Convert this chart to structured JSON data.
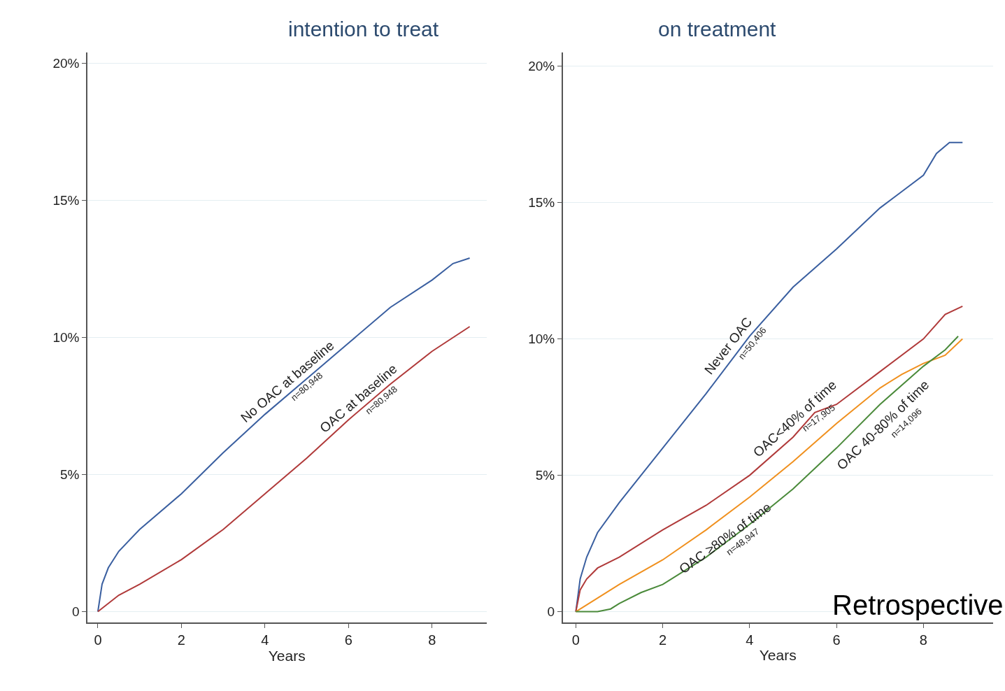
{
  "chart_data": [
    {
      "type": "line",
      "title": "intention to treat",
      "xlabel": "Years",
      "xlim": [
        -0.25,
        9.3
      ],
      "ylim": [
        -0.4,
        20.4
      ],
      "xticks": [
        0,
        2,
        4,
        6,
        8
      ],
      "yticks": [
        {
          "value": 0,
          "label": "0"
        },
        {
          "value": 5,
          "label": "5%"
        },
        {
          "value": 10,
          "label": "10%"
        },
        {
          "value": 15,
          "label": "15%"
        },
        {
          "value": 20,
          "label": "20%"
        }
      ],
      "grid": "y",
      "marker": "none",
      "line_style": "solid",
      "series": [
        {
          "color": "#3a5fa0",
          "x": [
            0,
            0.1,
            0.25,
            0.5,
            1,
            2,
            3,
            4,
            5,
            6,
            7,
            8,
            8.5,
            8.9
          ],
          "values": [
            0,
            1.0,
            1.6,
            2.2,
            3.0,
            4.3,
            5.8,
            7.2,
            8.5,
            9.8,
            11.1,
            12.1,
            12.7,
            12.9
          ]
        },
        {
          "color": "#b03a3a",
          "x": [
            0,
            0.5,
            1,
            2,
            3,
            4,
            5,
            6,
            7,
            8,
            8.9
          ],
          "values": [
            0,
            0.6,
            1.0,
            1.9,
            3.0,
            4.3,
            5.6,
            7.0,
            8.3,
            9.5,
            10.4
          ]
        }
      ],
      "annotations": [
        {
          "text": "No OAC at baseline",
          "x": 4.7,
          "y": 8.1
        },
        {
          "text": "n=80,948",
          "x": 4.9,
          "y": 8.4
        },
        {
          "text": "OAC at baseline",
          "x": 6.4,
          "y": 7.5
        },
        {
          "text": "n=80,948",
          "x": 6.7,
          "y": 7.9
        }
      ]
    },
    {
      "type": "line",
      "title": "on treatment",
      "xlabel": "Years",
      "xlim": [
        -0.3,
        9.6
      ],
      "ylim": [
        -0.4,
        20.5
      ],
      "xticks": [
        0,
        2,
        4,
        6,
        8
      ],
      "yticks": [
        {
          "value": 0,
          "label": "0"
        },
        {
          "value": 5,
          "label": "5%"
        },
        {
          "value": 10,
          "label": "10%"
        },
        {
          "value": 15,
          "label": "15%"
        },
        {
          "value": 20,
          "label": "20%"
        }
      ],
      "grid": "y",
      "marker": "none",
      "line_style": "solid",
      "series": [
        {
          "color": "#3a5fa0",
          "x": [
            0,
            0.1,
            0.25,
            0.5,
            1,
            2,
            3,
            4,
            5,
            6,
            7,
            7.5,
            8,
            8.3,
            8.6,
            8.9
          ],
          "values": [
            0,
            1.2,
            2.0,
            2.9,
            4.0,
            6.0,
            8.0,
            10.1,
            11.9,
            13.3,
            14.8,
            15.4,
            16.0,
            16.8,
            17.2,
            17.2
          ]
        },
        {
          "color": "#b03a3a",
          "x": [
            0,
            0.1,
            0.25,
            0.5,
            1,
            2,
            3,
            4,
            5,
            5.5,
            6,
            7,
            8,
            8.5,
            8.9
          ],
          "values": [
            0,
            0.8,
            1.2,
            1.6,
            2.0,
            3.0,
            3.9,
            5.0,
            6.4,
            7.3,
            7.6,
            8.8,
            10.0,
            10.9,
            11.2
          ]
        },
        {
          "color": "#f0901e",
          "x": [
            0,
            0.5,
            1,
            2,
            3,
            4,
            5,
            6,
            7,
            7.5,
            8,
            8.5,
            8.9
          ],
          "values": [
            0,
            0.5,
            1.0,
            1.9,
            3.0,
            4.2,
            5.5,
            6.9,
            8.2,
            8.7,
            9.1,
            9.4,
            10.0
          ]
        },
        {
          "color": "#4a8a3a",
          "x": [
            0,
            0.5,
            0.8,
            1,
            1.5,
            2,
            3,
            4,
            5,
            6,
            7,
            8,
            8.5,
            8.8
          ],
          "values": [
            0,
            0.0,
            0.1,
            0.3,
            0.7,
            1.0,
            2.0,
            3.2,
            4.5,
            6.0,
            7.6,
            9.0,
            9.6,
            10.1
          ]
        }
      ],
      "annotations": [
        {
          "text": "Never OAC",
          "x": 3.7,
          "y": 9.5
        },
        {
          "text": "n=50,406",
          "x": 3.95,
          "y": 10.0
        },
        {
          "text": "OAC<40% of time",
          "x": 5.2,
          "y": 6.8
        },
        {
          "text": "n=17,905",
          "x": 5.5,
          "y": 7.3
        },
        {
          "text": "OAC ≥80% of time",
          "x": 3.2,
          "y": 3.2
        },
        {
          "text": "n=48,947",
          "x": 3.4,
          "y": 3.5
        },
        {
          "text": "OAC 40-80% of time",
          "x": 6.8,
          "y": 7.3
        },
        {
          "text": "n=14,096",
          "x": 7.1,
          "y": 7.8
        },
        "Retrospective"
      ]
    }
  ]
}
